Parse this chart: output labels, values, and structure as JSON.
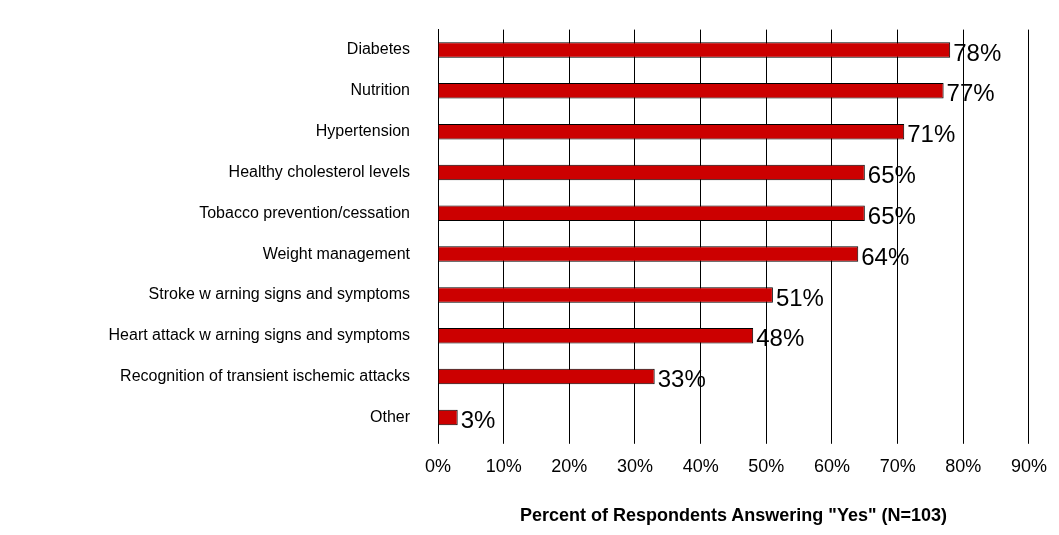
{
  "chart_data": {
    "type": "bar",
    "orientation": "horizontal",
    "xlabel": "Percent of Respondents Answering \"Yes\" (N=103)",
    "categories": [
      "Diabetes",
      "Nutrition",
      "Hypertension",
      "Healthy cholesterol levels",
      "Tobacco prevention/cessation",
      "Weight management",
      "Stroke w arning signs and symptoms",
      "Heart attack w arning signs and symptoms",
      "Recognition of transient ischemic attacks",
      "Other"
    ],
    "values": [
      78,
      77,
      71,
      65,
      65,
      64,
      51,
      48,
      33,
      3
    ],
    "value_labels": [
      "78%",
      "77%",
      "71%",
      "65%",
      "65%",
      "64%",
      "51%",
      "48%",
      "33%",
      "3%"
    ],
    "color": "#cc0000",
    "xlim": [
      0,
      90
    ],
    "xticks": [
      {
        "value": 0,
        "label": "0%"
      },
      {
        "value": 10,
        "label": "10%"
      },
      {
        "value": 20,
        "label": "20%"
      },
      {
        "value": 30,
        "label": "30%"
      },
      {
        "value": 40,
        "label": "40%"
      },
      {
        "value": 50,
        "label": "50%"
      },
      {
        "value": 60,
        "label": "60%"
      },
      {
        "value": 70,
        "label": "70%"
      },
      {
        "value": 80,
        "label": "80%"
      },
      {
        "value": 90,
        "label": "90%"
      }
    ],
    "grid": "x",
    "legend": false
  }
}
